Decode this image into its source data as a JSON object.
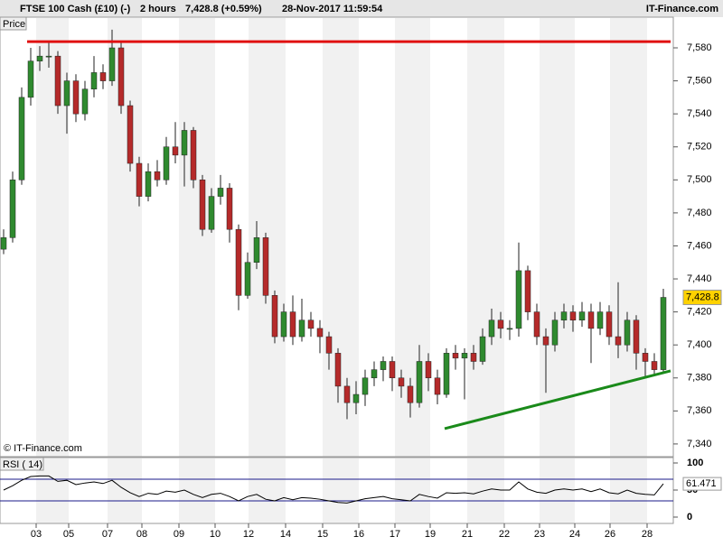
{
  "header": {
    "instrument": "FTSE 100 Cash (£10) (-)",
    "interval": "2 hours",
    "quote": "7,428.8 (+0.59%)",
    "timestamp": "28-Nov-2017 11:59:54",
    "brand": "IT-Finance.com"
  },
  "chart_data": [
    {
      "type": "candlestick",
      "label": "Price",
      "watermark": "© IT-Finance.com",
      "up_color": "#2f8a2f",
      "down_color": "#b52a2a",
      "open": [
        7458,
        7465,
        7500,
        7550,
        7572,
        7575,
        7575,
        7545,
        7560,
        7540,
        7555,
        7565,
        7560,
        7580,
        7545,
        7510,
        7490,
        7505,
        7500,
        7520,
        7515,
        7530,
        7500,
        7470,
        7490,
        7495,
        7470,
        7430,
        7450,
        7465,
        7430,
        7405,
        7420,
        7405,
        7415,
        7410,
        7405,
        7395,
        7375,
        7365,
        7370,
        7380,
        7385,
        7390,
        7380,
        7375,
        7365,
        7390,
        7380,
        7370,
        7395,
        7392,
        7395,
        7390,
        7405,
        7415,
        7410,
        7410,
        7445,
        7420,
        7405,
        7400,
        7415,
        7420,
        7415,
        7420,
        7410,
        7420,
        7405,
        7400,
        7415,
        7395,
        7390,
        7385
      ],
      "high": [
        7470,
        7505,
        7556,
        7580,
        7581,
        7583,
        7578,
        7565,
        7564,
        7560,
        7575,
        7570,
        7591,
        7584,
        7548,
        7514,
        7510,
        7512,
        7526,
        7535,
        7535,
        7532,
        7503,
        7495,
        7503,
        7498,
        7473,
        7456,
        7475,
        7468,
        7433,
        7425,
        7430,
        7428,
        7420,
        7415,
        7408,
        7398,
        7380,
        7378,
        7385,
        7390,
        7393,
        7393,
        7385,
        7380,
        7400,
        7395,
        7385,
        7398,
        7400,
        7398,
        7400,
        7410,
        7422,
        7420,
        7415,
        7462,
        7448,
        7425,
        7410,
        7420,
        7425,
        7424,
        7426,
        7425,
        7426,
        7424,
        7438,
        7420,
        7418,
        7398,
        7395,
        7434
      ],
      "low": [
        7455,
        7462,
        7497,
        7545,
        7566,
        7568,
        7540,
        7528,
        7535,
        7536,
        7550,
        7555,
        7557,
        7540,
        7505,
        7484,
        7487,
        7496,
        7497,
        7510,
        7496,
        7495,
        7466,
        7468,
        7485,
        7462,
        7421,
        7428,
        7446,
        7425,
        7401,
        7402,
        7400,
        7402,
        7405,
        7395,
        7385,
        7365,
        7355,
        7358,
        7363,
        7375,
        7378,
        7372,
        7368,
        7356,
        7362,
        7372,
        7364,
        7368,
        7385,
        7367,
        7385,
        7388,
        7400,
        7404,
        7403,
        7405,
        7415,
        7400,
        7371,
        7396,
        7410,
        7408,
        7411,
        7389,
        7406,
        7400,
        7392,
        7396,
        7385,
        7381,
        7381,
        7383
      ],
      "close": [
        7465,
        7500,
        7550,
        7572,
        7575,
        7575,
        7545,
        7560,
        7540,
        7555,
        7565,
        7560,
        7580,
        7545,
        7510,
        7490,
        7505,
        7500,
        7520,
        7515,
        7530,
        7500,
        7470,
        7490,
        7495,
        7470,
        7430,
        7450,
        7465,
        7430,
        7405,
        7420,
        7405,
        7415,
        7410,
        7405,
        7395,
        7375,
        7365,
        7370,
        7380,
        7385,
        7390,
        7380,
        7375,
        7365,
        7390,
        7380,
        7370,
        7395,
        7392,
        7395,
        7390,
        7405,
        7415,
        7410,
        7410,
        7445,
        7420,
        7405,
        7400,
        7415,
        7420,
        7415,
        7420,
        7410,
        7420,
        7405,
        7400,
        7415,
        7395,
        7390,
        7385,
        7428.8
      ],
      "last": {
        "value": 7428.8,
        "label": "7,428.8"
      },
      "lines": [
        {
          "color": "#e01010",
          "x": [
            2.6,
            73.8
          ],
          "y": [
            7583.8,
            7583.8
          ]
        },
        {
          "color": "#1a8a1a",
          "x": [
            48.8,
            73.8
          ],
          "y": [
            7349.3,
            7384.3
          ]
        }
      ],
      "xlim": [
        -0.4,
        74.1
      ],
      "ylim": [
        7332.3,
        7598.6
      ],
      "yticks": [
        {
          "value": 7340,
          "label": "7,340"
        },
        {
          "value": 7360,
          "label": "7,360"
        },
        {
          "value": 7380,
          "label": "7,380"
        },
        {
          "value": 7400,
          "label": "7,400"
        },
        {
          "value": 7420,
          "label": "7,420"
        },
        {
          "value": 7440,
          "label": "7,440"
        },
        {
          "value": 7460,
          "label": "7,460"
        },
        {
          "value": 7480,
          "label": "7,480"
        },
        {
          "value": 7500,
          "label": "7,500"
        },
        {
          "value": 7520,
          "label": "7,520"
        },
        {
          "value": 7540,
          "label": "7,540"
        },
        {
          "value": 7560,
          "label": "7,560"
        },
        {
          "value": 7580,
          "label": "7,580"
        }
      ]
    },
    {
      "type": "line",
      "label": "RSI ( 14)",
      "color": "#000000",
      "values": [
        50,
        58,
        68,
        75,
        76,
        76,
        66,
        68,
        60,
        63,
        65,
        62,
        68,
        55,
        45,
        38,
        44,
        42,
        48,
        46,
        50,
        42,
        36,
        42,
        44,
        38,
        30,
        38,
        42,
        33,
        30,
        36,
        32,
        36,
        35,
        33,
        30,
        27,
        26,
        30,
        34,
        36,
        38,
        34,
        32,
        30,
        42,
        38,
        35,
        45,
        44,
        45,
        43,
        48,
        52,
        50,
        50,
        65,
        52,
        46,
        44,
        50,
        52,
        50,
        52,
        47,
        52,
        45,
        43,
        50,
        44,
        42,
        41,
        61.471
      ],
      "last": {
        "value": 61.471,
        "label": "61.471"
      },
      "levels": [
        70,
        30
      ],
      "level_color": "#1a1a8a",
      "xlim": [
        -0.4,
        74.1
      ],
      "ylim": [
        -11.7,
        110
      ],
      "yticks": [
        0,
        50,
        100
      ],
      "xticks": [
        {
          "value": 3.6,
          "label": "03"
        },
        {
          "value": 7.2,
          "label": "05"
        },
        {
          "value": 11.5,
          "label": "07"
        },
        {
          "value": 15.3,
          "label": "08"
        },
        {
          "value": 19.4,
          "label": "09"
        },
        {
          "value": 23.4,
          "label": "10"
        },
        {
          "value": 27.1,
          "label": "12"
        },
        {
          "value": 31.2,
          "label": "14"
        },
        {
          "value": 35.3,
          "label": "15"
        },
        {
          "value": 39.3,
          "label": "16"
        },
        {
          "value": 43.3,
          "label": "17"
        },
        {
          "value": 47.2,
          "label": "19"
        },
        {
          "value": 51.3,
          "label": "21"
        },
        {
          "value": 55.4,
          "label": "22"
        },
        {
          "value": 59.3,
          "label": "23"
        },
        {
          "value": 63.2,
          "label": "24"
        },
        {
          "value": 67.1,
          "label": "26"
        },
        {
          "value": 71.2,
          "label": "28"
        }
      ]
    }
  ]
}
